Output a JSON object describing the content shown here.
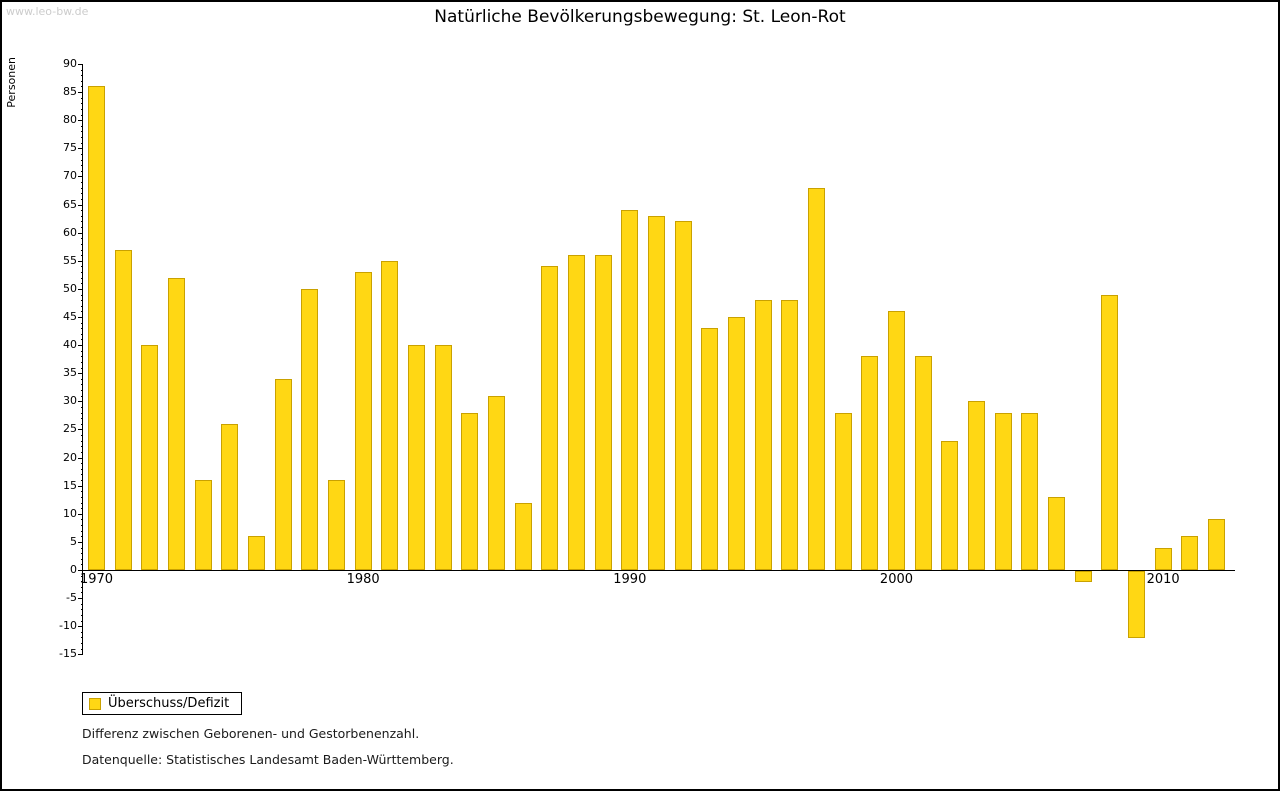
{
  "watermark": "www.leo-bw.de",
  "footnotes": [
    "Differenz zwischen Geborenen- und Gestorbenenzahl.",
    "Datenquelle: Statistisches Landesamt Baden-Württemberg."
  ],
  "chart_data": {
    "type": "bar",
    "title": "Natürliche Bevölkerungsbewegung: St. Leon-Rot",
    "xlabel": "",
    "ylabel": "Personen",
    "ylim": [
      -15,
      90
    ],
    "ytick_step": 5,
    "grid": false,
    "legend_position": "bottom-left",
    "series_name": "Überschuss/Defizit",
    "bar_fill": "#ffd714",
    "bar_stroke": "#c9a100",
    "xticks": [
      1970,
      1980,
      1990,
      2000,
      2010
    ],
    "x": [
      1970,
      1971,
      1972,
      1973,
      1974,
      1975,
      1976,
      1977,
      1978,
      1979,
      1980,
      1981,
      1982,
      1983,
      1984,
      1985,
      1986,
      1987,
      1988,
      1989,
      1990,
      1991,
      1992,
      1993,
      1994,
      1995,
      1996,
      1997,
      1998,
      1999,
      2000,
      2001,
      2002,
      2003,
      2004,
      2005,
      2006,
      2007,
      2008,
      2009,
      2010,
      2011,
      2012
    ],
    "values": [
      86,
      57,
      40,
      52,
      16,
      26,
      6,
      34,
      50,
      16,
      53,
      55,
      40,
      40,
      28,
      31,
      12,
      54,
      56,
      56,
      64,
      63,
      62,
      43,
      45,
      48,
      48,
      68,
      28,
      38,
      46,
      38,
      23,
      30,
      28,
      28,
      13,
      -2,
      49,
      -12,
      4,
      6,
      9
    ]
  }
}
